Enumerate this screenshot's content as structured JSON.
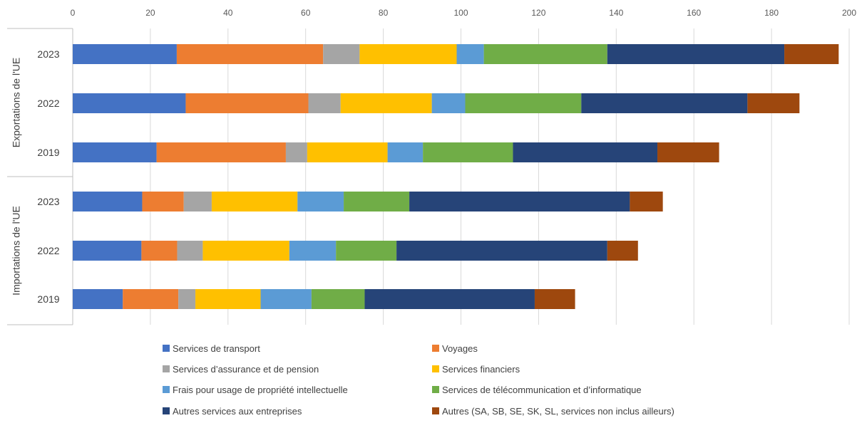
{
  "chart_data": {
    "type": "bar",
    "orientation": "horizontal",
    "stacked": true,
    "title": "",
    "xlabel": "",
    "ylabel": "",
    "xlim": [
      0,
      200
    ],
    "x_ticks": [
      0,
      20,
      40,
      60,
      80,
      100,
      120,
      140,
      160,
      180,
      200
    ],
    "grid": true,
    "legend_position": "bottom",
    "groups": [
      {
        "name": "Exportations de l'UE",
        "categories": [
          "2023",
          "2022",
          "2019"
        ]
      },
      {
        "name": "Importations de l'UE",
        "categories": [
          "2023",
          "2022",
          "2019"
        ]
      }
    ],
    "series": [
      {
        "name": "Services de transport",
        "color": "#4472C4",
        "values": [
          26.8,
          29.1,
          21.6,
          17.9,
          17.7,
          12.9
        ]
      },
      {
        "name": "Voyages",
        "color": "#ED7D31",
        "values": [
          37.7,
          31.6,
          33.3,
          10.7,
          9.2,
          14.3
        ]
      },
      {
        "name": "Services d’assurance et de pension",
        "color": "#A5A5A5",
        "values": [
          9.4,
          8.3,
          5.5,
          7.2,
          6.6,
          4.4
        ]
      },
      {
        "name": "Services financiers",
        "color": "#FFC000",
        "values": [
          25.0,
          23.5,
          20.7,
          22.1,
          22.3,
          16.8
        ]
      },
      {
        "name": "Frais pour usage de propriété intellectuelle",
        "color": "#5B9BD5",
        "values": [
          7.0,
          8.6,
          9.1,
          11.9,
          12.0,
          13.1
        ]
      },
      {
        "name": "Services de télécommunication et d’informatique",
        "color": "#70AD47",
        "values": [
          31.8,
          29.9,
          23.2,
          16.9,
          15.6,
          13.7
        ]
      },
      {
        "name": "Autres services aux entreprises",
        "color": "#264478",
        "values": [
          45.6,
          42.8,
          37.2,
          56.8,
          54.3,
          43.8
        ]
      },
      {
        "name": "Autres (SA, SB, SE, SK, SL, services non inclus ailleurs)",
        "color": "#9E480E",
        "values": [
          14.0,
          13.4,
          15.9,
          8.5,
          7.9,
          10.4
        ]
      }
    ]
  }
}
